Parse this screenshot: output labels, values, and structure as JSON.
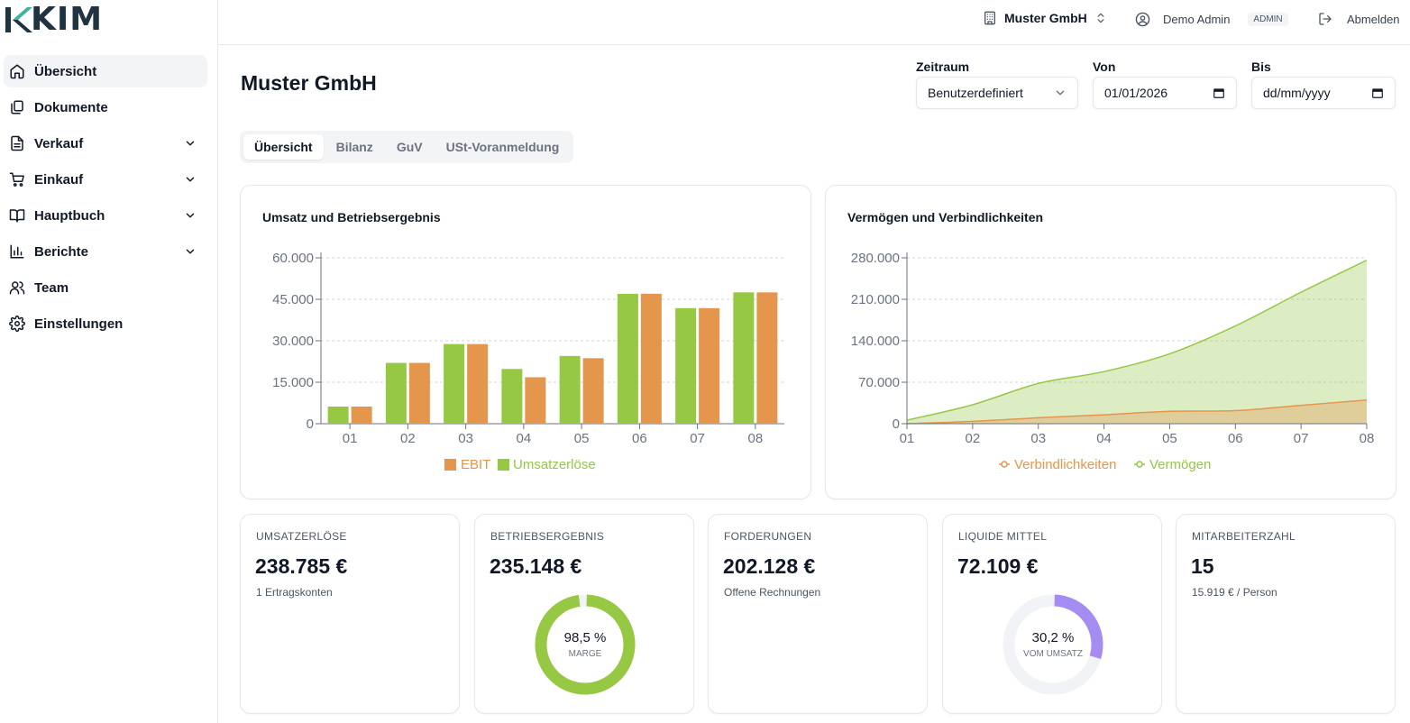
{
  "app": {
    "logo_text": "KIM"
  },
  "sidebar": {
    "items": [
      {
        "label": "Übersicht",
        "icon": "home-icon",
        "expandable": false,
        "active": true
      },
      {
        "label": "Dokumente",
        "icon": "documents-icon",
        "expandable": false,
        "active": false
      },
      {
        "label": "Verkauf",
        "icon": "file-text-icon",
        "expandable": true,
        "active": false
      },
      {
        "label": "Einkauf",
        "icon": "cart-icon",
        "expandable": true,
        "active": false
      },
      {
        "label": "Hauptbuch",
        "icon": "book-icon",
        "expandable": true,
        "active": false
      },
      {
        "label": "Berichte",
        "icon": "bar-chart-icon",
        "expandable": true,
        "active": false
      },
      {
        "label": "Team",
        "icon": "users-icon",
        "expandable": false,
        "active": false
      },
      {
        "label": "Einstellungen",
        "icon": "gear-icon",
        "expandable": false,
        "active": false
      }
    ]
  },
  "header": {
    "company": "Muster GmbH",
    "user_name": "Demo Admin",
    "role_badge": "ADMIN",
    "logout_label": "Abmelden"
  },
  "page": {
    "title": "Muster GmbH"
  },
  "filters": {
    "zeitraum_label": "Zeitraum",
    "zeitraum_value": "Benutzerdefiniert",
    "von_label": "Von",
    "von_value": "01/01/2026",
    "bis_label": "Bis",
    "bis_placeholder": "dd/mm/yyyy"
  },
  "tabs": [
    {
      "label": "Übersicht",
      "active": true
    },
    {
      "label": "Bilanz",
      "active": false
    },
    {
      "label": "GuV",
      "active": false
    },
    {
      "label": "USt-Voranmeldung",
      "active": false
    }
  ],
  "colors": {
    "green": "#96c844",
    "orange": "#e4964c",
    "purple": "#a48cf0",
    "track": "#f1f3f6",
    "logo_teal": "#43b3a0",
    "logo_dark": "#1f3440"
  },
  "chart_data": [
    {
      "type": "bar",
      "title": "Umsatz und Betriebsergebnis",
      "categories": [
        "01",
        "02",
        "03",
        "04",
        "05",
        "06",
        "07",
        "08"
      ],
      "yticks": [
        "0",
        "15.000",
        "30.000",
        "45.000",
        "60.000"
      ],
      "ylim": [
        0,
        60000
      ],
      "series": [
        {
          "name": "Umsatzerlöse",
          "values": [
            6200,
            22000,
            28800,
            19800,
            24500,
            47000,
            41800,
            47500
          ]
        },
        {
          "name": "EBIT",
          "values": [
            6200,
            22000,
            28800,
            16800,
            23700,
            47000,
            41800,
            47500
          ]
        }
      ],
      "legend": [
        "EBIT",
        "Umsatzerlöse"
      ],
      "legend_position": "bottom",
      "grid": true
    },
    {
      "type": "area",
      "title": "Vermögen und Verbindlichkeiten",
      "categories": [
        "01",
        "02",
        "03",
        "04",
        "05",
        "06",
        "07",
        "08"
      ],
      "yticks": [
        "0",
        "70.000",
        "140.000",
        "210.000",
        "280.000"
      ],
      "ylim": [
        0,
        280000
      ],
      "series": [
        {
          "name": "Verbindlichkeiten",
          "values": [
            0,
            4000,
            10000,
            15000,
            21000,
            22000,
            31000,
            40000
          ]
        },
        {
          "name": "Vermögen",
          "values": [
            6000,
            32000,
            68000,
            88000,
            118000,
            165000,
            222000,
            276000
          ]
        }
      ],
      "legend": [
        "Verbindlichkeiten",
        "Vermögen"
      ],
      "legend_position": "bottom",
      "grid": true
    }
  ],
  "kpis": [
    {
      "label": "UMSATZERLÖSE",
      "value": "238.785 €",
      "sub": "1 Ertragskonten"
    },
    {
      "label": "BETRIEBSERGEBNIS",
      "value": "235.148 €",
      "donut_pct": "98,5 %",
      "donut_fraction": 0.985,
      "donut_caption": "MARGE"
    },
    {
      "label": "FORDERUNGEN",
      "value": "202.128 €",
      "sub": "Offene Rechnungen"
    },
    {
      "label": "LIQUIDE MITTEL",
      "value": "72.109 €",
      "donut_pct": "30,2 %",
      "donut_fraction": 0.302,
      "donut_caption": "VOM UMSATZ"
    },
    {
      "label": "MITARBEITERZAHL",
      "value": "15",
      "sub": "15.919 € / Person"
    }
  ]
}
